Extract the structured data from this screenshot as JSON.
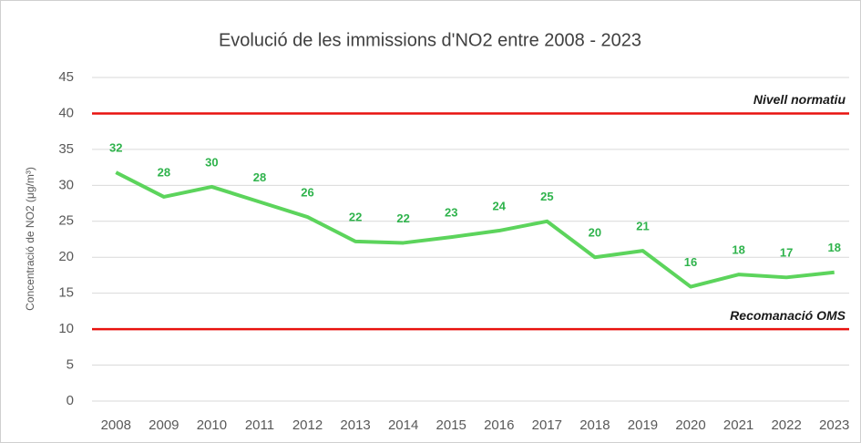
{
  "chart_data": {
    "type": "line",
    "title": "Evolució de les immissions d'NO2 entre 2008 - 2023",
    "y_label": "Concentració de NO2 (μg/m³)",
    "categories": [
      "2008",
      "2009",
      "2010",
      "2011",
      "2012",
      "2013",
      "2014",
      "2015",
      "2016",
      "2017",
      "2018",
      "2019",
      "2020",
      "2021",
      "2022",
      "2023"
    ],
    "series": [
      {
        "name": "NO2",
        "color": "#5cd45c",
        "label_color": "#2fb34c",
        "values": [
          31.8,
          28.4,
          29.8,
          27.7,
          25.6,
          22.2,
          22.0,
          22.8,
          23.7,
          25.0,
          20.0,
          20.9,
          15.9,
          17.6,
          17.2,
          17.9
        ],
        "value_labels": [
          "32",
          "28",
          "30",
          "28",
          "26",
          "22",
          "22",
          "23",
          "24",
          "25",
          "20",
          "21",
          "16",
          "18",
          "17",
          "18"
        ]
      }
    ],
    "reference_lines": [
      {
        "value": 40,
        "label": "Nivell normatiu",
        "color": "#e8120f"
      },
      {
        "value": 10,
        "label": "Recomanació OMS",
        "color": "#e8120f"
      }
    ],
    "ylim": [
      0,
      45
    ],
    "yticks": [
      0,
      5,
      10,
      15,
      20,
      25,
      30,
      35,
      40,
      45
    ],
    "grid": true
  }
}
